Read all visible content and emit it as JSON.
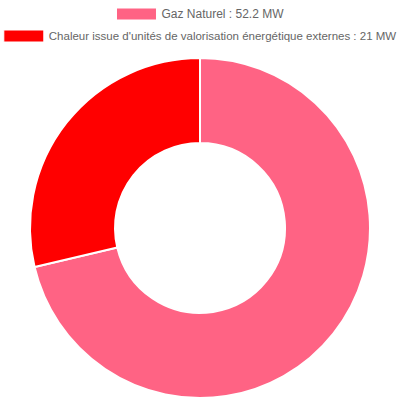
{
  "chart_data": {
    "type": "doughnut",
    "categories": [
      "Gaz Naturel : 52.2 MW",
      "Chaleur issue d'unités de valorisation énergétique externes : 21 MW"
    ],
    "values": [
      52.2,
      21
    ],
    "colors": [
      "#ff6384",
      "#ff0000"
    ],
    "legend": "top"
  }
}
